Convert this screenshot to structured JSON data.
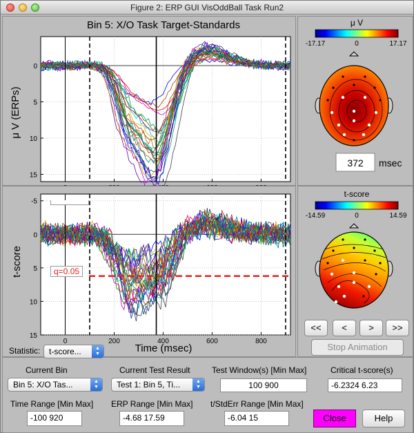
{
  "window": {
    "title": "Figure 2: ERP GUI VisOddBall Task Run2"
  },
  "erp_plot": {
    "title": "Bin 5: X/O Task Target-Standards",
    "ylabel": "μ V (ERPs)",
    "y_ticks": [
      "0",
      "5",
      "10",
      "15"
    ],
    "x_ticks": [
      "0",
      "200",
      "400",
      "600",
      "800"
    ]
  },
  "t_plot": {
    "ylabel": "t-score",
    "xlabel": "Time (msec)",
    "y_ticks": [
      "-5",
      "0",
      "5",
      "10",
      "15"
    ],
    "x_ticks": [
      "0",
      "200",
      "400",
      "600",
      "800"
    ],
    "threshold_label": "q=0.05"
  },
  "topomap_erp": {
    "colorbar_title": "μ V",
    "cbar_min": "-17.17",
    "cbar_mid": "0",
    "cbar_max": "17.17",
    "time_value": "372",
    "time_unit": "msec"
  },
  "topomap_t": {
    "colorbar_title": "t-score",
    "cbar_min": "-14.59",
    "cbar_mid": "0",
    "cbar_max": "14.59"
  },
  "animation": {
    "btn_first": "<<",
    "btn_prev": "<",
    "btn_next": ">",
    "btn_last": ">>",
    "stop_label": "Stop Animation"
  },
  "statistic": {
    "label": "Statistic:",
    "value": "t-score..."
  },
  "controls": {
    "current_bin_label": "Current Bin",
    "current_bin_value": "Bin 5: X/O Tas...",
    "current_test_label": "Current Test Result",
    "current_test_value": "Test 1: Bin 5, Ti...",
    "test_window_label": "Test Window(s) [Min Max]",
    "test_window_value": "100  900",
    "critical_label": "Critical t-score(s)",
    "critical_value": "-6.2324      6.23",
    "time_range_label": "Time Range [Min Max]",
    "time_range_value": "-100  920",
    "erp_range_label": "ERP Range [Min Max]",
    "erp_range_value": "-4.68       17.59",
    "t_range_label": "t/StdErr Range [Min Max]",
    "t_range_value": "-6.04         15",
    "close_label": "Close",
    "help_label": "Help"
  },
  "colors": {
    "close_button": "#ff00ff",
    "threshold": "#e82020"
  }
}
